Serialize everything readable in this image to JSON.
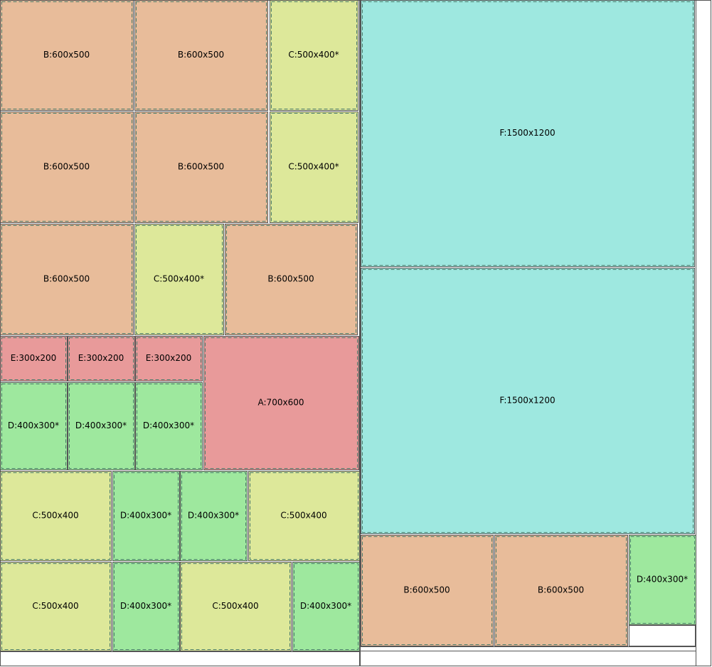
{
  "pieces": [
    {
      "label": "B:600x500"
    },
    {
      "label": "B:600x500"
    },
    {
      "label": "C:500x400*"
    },
    {
      "label": "B:600x500"
    },
    {
      "label": "B:600x500"
    },
    {
      "label": "C:500x400*"
    },
    {
      "label": "B:600x500"
    },
    {
      "label": "C:500x400*"
    },
    {
      "label": "B:600x500"
    },
    {
      "label": "E:300x200"
    },
    {
      "label": "E:300x200"
    },
    {
      "label": "E:300x200"
    },
    {
      "label": "A:700x600"
    },
    {
      "label": "D:400x300*"
    },
    {
      "label": "D:400x300*"
    },
    {
      "label": "D:400x300*"
    },
    {
      "label": "C:500x400"
    },
    {
      "label": "D:400x300*"
    },
    {
      "label": "D:400x300*"
    },
    {
      "label": "C:500x400"
    },
    {
      "label": "C:500x400"
    },
    {
      "label": "D:400x300*"
    },
    {
      "label": "C:500x400"
    },
    {
      "label": "D:400x300*"
    },
    {
      "label": "F:1500x1200"
    },
    {
      "label": "F:1500x1200"
    },
    {
      "label": "B:600x500"
    },
    {
      "label": "B:600x500"
    },
    {
      "label": "D:400x300*"
    }
  ]
}
